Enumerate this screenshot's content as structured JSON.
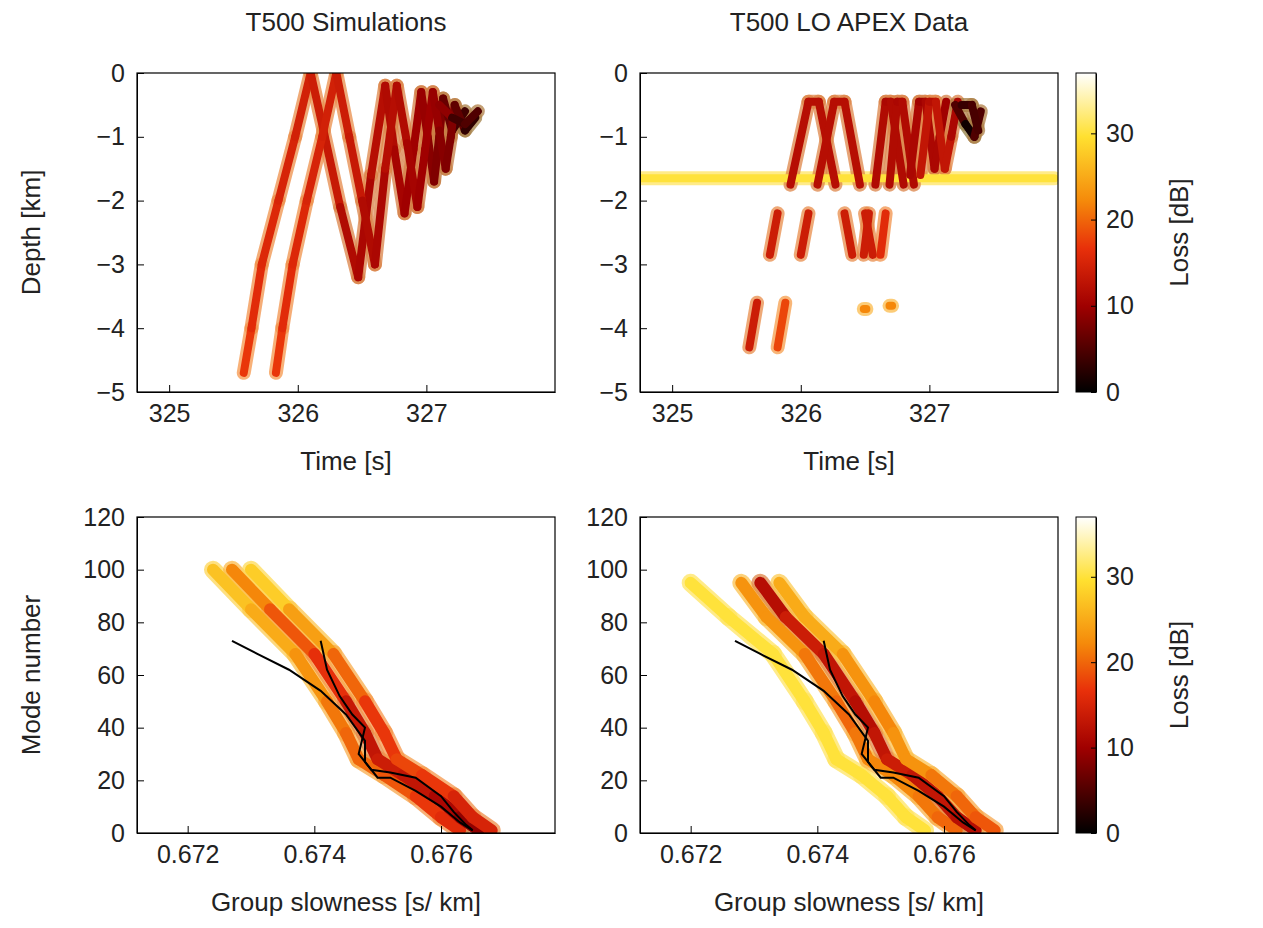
{
  "chart_data": [
    {
      "type": "heatmap",
      "title": "T500 Simulations",
      "xlabel": "Time [s]",
      "ylabel": "Depth [km]",
      "xlim": [
        324.75,
        328
      ],
      "xticks": [
        325,
        326,
        327
      ],
      "ylim": [
        -5,
        0
      ],
      "yticks": [
        {
          "value": -5,
          "label": "−5"
        },
        {
          "value": -4,
          "label": "−4"
        },
        {
          "value": -3,
          "label": "−3"
        },
        {
          "value": -2,
          "label": "−2"
        },
        {
          "value": -1,
          "label": "−1"
        },
        0
      ],
      "ridges": [
        {
          "x": [
            325.58,
            325.64,
            325.72,
            325.85,
            325.98,
            326.1,
            326.2,
            326.33,
            326.47,
            326.57,
            326.68,
            326.75,
            326.83,
            326.9,
            326.96,
            327.01,
            327.06,
            327.1,
            327.13,
            327.2,
            327.3
          ],
          "y": [
            -4.7,
            -4.0,
            -3.0,
            -2.0,
            -1.0,
            0,
            -0.9,
            -2.1,
            -3.2,
            -1.6,
            -0.2,
            -1.2,
            -2.2,
            -1.2,
            -0.3,
            -1.0,
            -1.7,
            -1.0,
            -0.4,
            -0.9,
            -0.6
          ],
          "values": [
            18,
            16,
            16,
            15,
            15,
            14,
            14,
            13,
            10,
            12,
            12,
            11,
            10,
            10,
            10,
            9,
            8,
            8,
            8,
            5,
            3
          ]
        },
        {
          "x": [
            325.83,
            325.88,
            325.96,
            326.07,
            326.19,
            326.3,
            326.4,
            326.5,
            326.6,
            326.68,
            326.77,
            326.85,
            326.93,
            326.99,
            327.05,
            327.1,
            327.15,
            327.19,
            327.22,
            327.3,
            327.38
          ],
          "y": [
            -4.7,
            -4.0,
            -3.0,
            -2.0,
            -1.0,
            0,
            -1.0,
            -2.0,
            -3.0,
            -1.5,
            -0.2,
            -1.1,
            -2.1,
            -1.2,
            -0.3,
            -0.9,
            -1.5,
            -1.0,
            -0.5,
            -0.9,
            -0.7
          ],
          "values": [
            18,
            16,
            16,
            15,
            15,
            14,
            14,
            13,
            10,
            12,
            12,
            11,
            10,
            10,
            10,
            9,
            8,
            8,
            8,
            4,
            2
          ]
        },
        {
          "x": [
            327.1,
            327.2,
            327.3,
            327.4
          ],
          "y": [
            -0.5,
            -0.7,
            -0.8,
            -0.6
          ],
          "values": [
            12,
            6,
            2,
            8
          ]
        }
      ]
    },
    {
      "type": "heatmap",
      "title": "T500 LO APEX Data",
      "xlabel": "Time [s]",
      "xlim": [
        324.75,
        328
      ],
      "xticks": [
        325,
        326,
        327
      ],
      "ylim": [
        -5,
        0
      ],
      "yticks": [
        {
          "value": -5,
          "label": "−5"
        },
        {
          "value": -4,
          "label": "−4"
        },
        {
          "value": -3,
          "label": "−3"
        },
        {
          "value": -2,
          "label": "−2"
        },
        {
          "value": -1,
          "label": "−1"
        },
        0
      ],
      "ridges": [
        {
          "x": [
            324.76,
            327.97
          ],
          "y": [
            -1.65,
            -1.65
          ],
          "values": [
            30,
            30
          ]
        },
        {
          "x": [
            325.6,
            325.66
          ],
          "y": [
            -4.3,
            -3.6
          ],
          "values": [
            14,
            14
          ]
        },
        {
          "x": [
            325.82,
            325.88
          ],
          "y": [
            -4.3,
            -3.6
          ],
          "values": [
            18,
            18
          ]
        },
        {
          "x": [
            325.76,
            325.82
          ],
          "y": [
            -2.85,
            -2.2
          ],
          "values": [
            14,
            14
          ]
        },
        {
          "x": [
            326.0,
            326.06
          ],
          "y": [
            -2.85,
            -2.2
          ],
          "values": [
            14,
            14
          ]
        },
        {
          "x": [
            326.34,
            326.4
          ],
          "y": [
            -2.2,
            -2.85
          ],
          "values": [
            14,
            14
          ]
        },
        {
          "x": [
            326.5,
            326.56
          ],
          "y": [
            -2.2,
            -2.85
          ],
          "values": [
            14,
            14
          ]
        },
        {
          "x": [
            326.49,
            326.53
          ],
          "y": [
            -2.85,
            -2.2
          ],
          "values": [
            14,
            14
          ]
        },
        {
          "x": [
            326.62,
            326.66
          ],
          "y": [
            -2.85,
            -2.2
          ],
          "values": [
            16,
            16
          ]
        },
        {
          "x": [
            325.92,
            326.06,
            326.14,
            326.27
          ],
          "y": [
            -1.75,
            -0.45,
            -0.45,
            -1.75
          ],
          "values": [
            12,
            12,
            12,
            12
          ]
        },
        {
          "x": [
            326.13,
            326.26,
            326.34,
            326.46
          ],
          "y": [
            -1.75,
            -0.45,
            -0.45,
            -1.75
          ],
          "values": [
            12,
            12,
            12,
            12
          ]
        },
        {
          "x": [
            326.58,
            326.66,
            326.7,
            326.8
          ],
          "y": [
            -1.75,
            -0.45,
            -0.45,
            -1.75
          ],
          "values": [
            12,
            11,
            11,
            12
          ]
        },
        {
          "x": [
            326.69,
            326.75,
            326.79,
            326.88
          ],
          "y": [
            -1.75,
            -0.45,
            -0.45,
            -1.75
          ],
          "values": [
            12,
            11,
            11,
            12
          ]
        },
        {
          "x": [
            326.85,
            326.92,
            326.97,
            327.04,
            327.08,
            327.13
          ],
          "y": [
            -1.6,
            -0.45,
            -0.45,
            -1.5,
            -1.0,
            -0.45
          ],
          "values": [
            12,
            10,
            10,
            12,
            10,
            10
          ]
        },
        {
          "x": [
            326.93,
            327.0,
            327.05,
            327.12,
            327.17,
            327.22
          ],
          "y": [
            -1.6,
            -0.45,
            -0.45,
            -1.5,
            -1.0,
            -0.45
          ],
          "values": [
            14,
            12,
            12,
            14,
            12,
            10
          ]
        },
        {
          "x": [
            327.2,
            327.28,
            327.35,
            327.4
          ],
          "y": [
            -0.5,
            -0.8,
            -1.0,
            -0.6
          ],
          "values": [
            8,
            2,
            0,
            10
          ]
        },
        {
          "x": [
            327.25,
            327.33,
            327.38
          ],
          "y": [
            -0.5,
            -0.5,
            -0.9
          ],
          "values": [
            4,
            3,
            6
          ]
        },
        {
          "x": [
            326.49,
            326.51
          ],
          "y": [
            -3.7,
            -3.7
          ],
          "values": [
            22,
            22
          ]
        },
        {
          "x": [
            326.69,
            326.71
          ],
          "y": [
            -3.65,
            -3.65
          ],
          "values": [
            22,
            22
          ]
        }
      ],
      "colorbar": {
        "label": "Loss [dB]",
        "lim": [
          0,
          37
        ],
        "ticks": [
          0,
          10,
          20,
          30
        ]
      }
    },
    {
      "type": "heatmap",
      "xlabel": "Group slowness [s/ km]",
      "ylabel": "Mode number",
      "xlim": [
        0.6712,
        0.6778
      ],
      "xticks": [
        0.672,
        0.674,
        0.676
      ],
      "ylim": [
        0,
        120
      ],
      "yticks": [
        0,
        20,
        40,
        60,
        80,
        100,
        120
      ],
      "ridges": [
        {
          "x": [
            0.6724,
            0.673,
            0.6737,
            0.6742,
            0.6745,
            0.6747,
            0.6751,
            0.6756,
            0.676,
            0.6763
          ],
          "y": [
            100,
            85,
            68,
            50,
            38,
            28,
            22,
            14,
            6,
            1
          ],
          "values": [
            28,
            26,
            24,
            22,
            20,
            20,
            20,
            18,
            16,
            16
          ]
        },
        {
          "x": [
            0.6727,
            0.6733,
            0.674,
            0.6745,
            0.6748,
            0.675,
            0.6754,
            0.6759,
            0.6763,
            0.6766
          ],
          "y": [
            100,
            85,
            68,
            50,
            38,
            28,
            22,
            14,
            6,
            1
          ],
          "values": [
            24,
            20,
            18,
            15,
            12,
            14,
            14,
            12,
            10,
            8
          ]
        },
        {
          "x": [
            0.673,
            0.6736,
            0.6743,
            0.6748,
            0.6751,
            0.6753,
            0.6757,
            0.6762,
            0.6765,
            0.6768
          ],
          "y": [
            100,
            85,
            68,
            50,
            38,
            28,
            22,
            14,
            6,
            1
          ],
          "values": [
            30,
            26,
            22,
            18,
            16,
            18,
            18,
            16,
            14,
            16
          ]
        }
      ],
      "series": [
        {
          "type": "line",
          "color": "#000000",
          "x": [
            0.6727,
            0.6731,
            0.6736,
            0.6741,
            0.6745,
            0.6748,
            0.6748,
            0.675,
            0.6752,
            0.6756,
            0.676,
            0.6763,
            0.6765
          ],
          "values": [
            73,
            68,
            62,
            54,
            45,
            35,
            27,
            21,
            21,
            16,
            10,
            4,
            1
          ]
        },
        {
          "type": "line",
          "color": "#000000",
          "x": [
            0.6741,
            0.6742,
            0.6744,
            0.6746,
            0.6748,
            0.6747,
            0.6749,
            0.6752,
            0.6756,
            0.676,
            0.6762,
            0.6764,
            0.6765
          ],
          "values": [
            73,
            62,
            52,
            45,
            40,
            30,
            24,
            23,
            21,
            14,
            8,
            3,
            1
          ]
        }
      ]
    },
    {
      "type": "heatmap",
      "xlabel": "Group slowness [s/ km]",
      "xlim": [
        0.6712,
        0.6778
      ],
      "xticks": [
        0.672,
        0.674,
        0.676
      ],
      "ylim": [
        0,
        120
      ],
      "yticks": [
        0,
        20,
        40,
        60,
        80,
        100,
        120
      ],
      "ridges": [
        {
          "x": [
            0.672,
            0.6726,
            0.6733,
            0.6738,
            0.6741,
            0.6743,
            0.6747,
            0.6751,
            0.6754,
            0.6757
          ],
          "y": [
            95,
            82,
            68,
            50,
            38,
            28,
            22,
            14,
            6,
            1
          ],
          "values": [
            30,
            30,
            30,
            30,
            30,
            30,
            30,
            30,
            30,
            30
          ]
        },
        {
          "x": [
            0.6728,
            0.6732,
            0.6738,
            0.6743,
            0.6746,
            0.6748,
            0.6752,
            0.6756,
            0.6759,
            0.6762
          ],
          "y": [
            95,
            82,
            68,
            50,
            38,
            28,
            22,
            14,
            6,
            1
          ],
          "values": [
            22,
            24,
            22,
            20,
            20,
            22,
            22,
            22,
            20,
            20
          ]
        },
        {
          "x": [
            0.6731,
            0.6735,
            0.6741,
            0.6746,
            0.6749,
            0.6751,
            0.6755,
            0.6759,
            0.6762,
            0.6765
          ],
          "y": [
            95,
            82,
            68,
            50,
            38,
            28,
            22,
            14,
            6,
            1
          ],
          "values": [
            10,
            14,
            14,
            12,
            12,
            14,
            14,
            12,
            14,
            10
          ]
        },
        {
          "x": [
            0.6734,
            0.6738,
            0.6744,
            0.6749,
            0.6752,
            0.6754,
            0.6758,
            0.6762,
            0.6765,
            0.6768
          ],
          "y": [
            95,
            82,
            68,
            50,
            38,
            28,
            22,
            14,
            6,
            1
          ],
          "values": [
            24,
            26,
            24,
            22,
            22,
            24,
            22,
            20,
            20,
            18
          ]
        }
      ],
      "series": [
        {
          "type": "line",
          "color": "#000000",
          "x": [
            0.6727,
            0.6731,
            0.6736,
            0.6741,
            0.6745,
            0.6748,
            0.6748,
            0.675,
            0.6752,
            0.6756,
            0.676,
            0.6763,
            0.6765
          ],
          "values": [
            73,
            68,
            62,
            54,
            45,
            35,
            27,
            21,
            21,
            16,
            10,
            4,
            1
          ]
        },
        {
          "type": "line",
          "color": "#000000",
          "x": [
            0.6741,
            0.6742,
            0.6744,
            0.6746,
            0.6748,
            0.6747,
            0.6749,
            0.6752,
            0.6756,
            0.676,
            0.6762,
            0.6764,
            0.6765
          ],
          "values": [
            73,
            62,
            52,
            45,
            40,
            30,
            24,
            23,
            21,
            14,
            8,
            3,
            1
          ]
        }
      ],
      "colorbar": {
        "label": "Loss [dB]",
        "lim": [
          0,
          37
        ],
        "ticks": [
          0,
          10,
          20,
          30
        ]
      }
    }
  ]
}
